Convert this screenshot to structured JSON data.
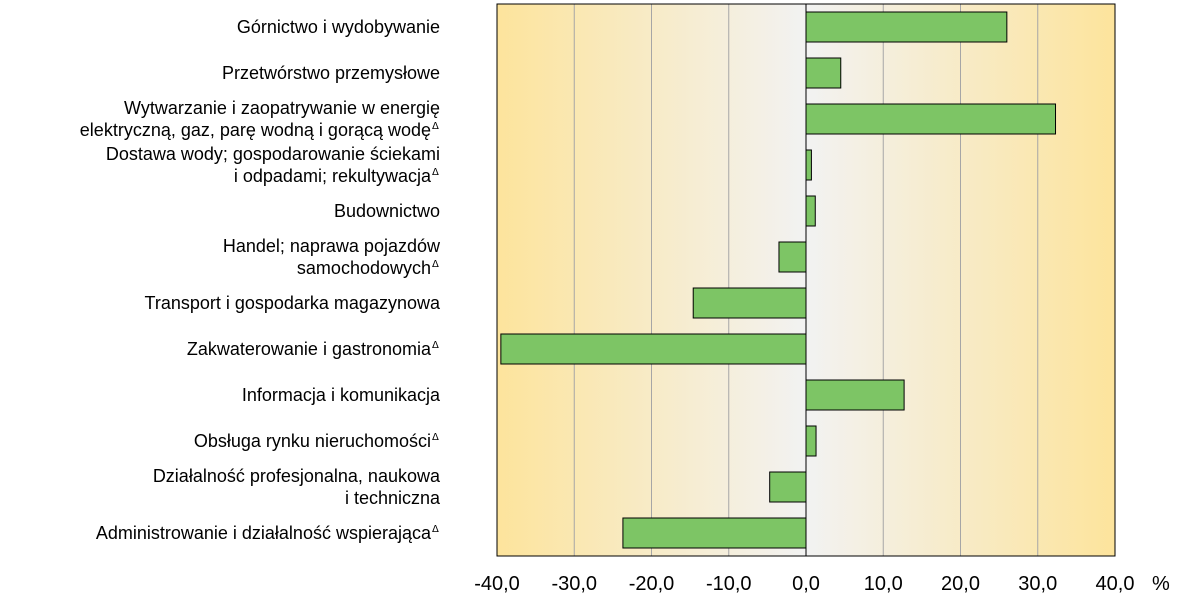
{
  "chart_data": {
    "type": "bar",
    "orientation": "horizontal",
    "categories": [
      {
        "lines": [
          "Górnictwo i wydobywanie"
        ],
        "mark": ""
      },
      {
        "lines": [
          "Przetwórstwo przemysłowe"
        ],
        "mark": ""
      },
      {
        "lines": [
          "Wytwarzanie i zaopatrywanie w energię",
          "elektryczną, gaz, parę wodną i gorącą wodę"
        ],
        "mark": "Δ"
      },
      {
        "lines": [
          "Dostawa wody; gospodarowanie ściekami",
          "i odpadami; rekultywacja"
        ],
        "mark": "Δ"
      },
      {
        "lines": [
          "Budownictwo"
        ],
        "mark": ""
      },
      {
        "lines": [
          "Handel; naprawa pojazdów",
          "samochodowych"
        ],
        "mark": "Δ"
      },
      {
        "lines": [
          "Transport i gospodarka magazynowa"
        ],
        "mark": ""
      },
      {
        "lines": [
          "Zakwaterowanie i gastronomia"
        ],
        "mark": "Δ"
      },
      {
        "lines": [
          "Informacja i komunikacja"
        ],
        "mark": ""
      },
      {
        "lines": [
          "Obsługa rynku nieruchomości"
        ],
        "mark": "Δ"
      },
      {
        "lines": [
          "Działalność profesjonalna, naukowa",
          "i techniczna"
        ],
        "mark": ""
      },
      {
        "lines": [
          "Administrowanie i działalność wspierająca"
        ],
        "mark": "Δ"
      }
    ],
    "values": [
      26.0,
      4.5,
      32.3,
      0.7,
      1.2,
      -3.5,
      -14.6,
      -39.5,
      12.7,
      1.3,
      -4.7,
      -23.7
    ],
    "xlim": [
      -40,
      40
    ],
    "ticks": [
      "-40,0",
      "-30,0",
      "-20,0",
      "-10,0",
      "0,0",
      "10,0",
      "20,0",
      "30,0",
      "40,0"
    ],
    "unit": "%",
    "grid": true,
    "bar_color": "#7dc565",
    "background_outer": "#fde49c",
    "background_center": "#f2f2f2"
  }
}
